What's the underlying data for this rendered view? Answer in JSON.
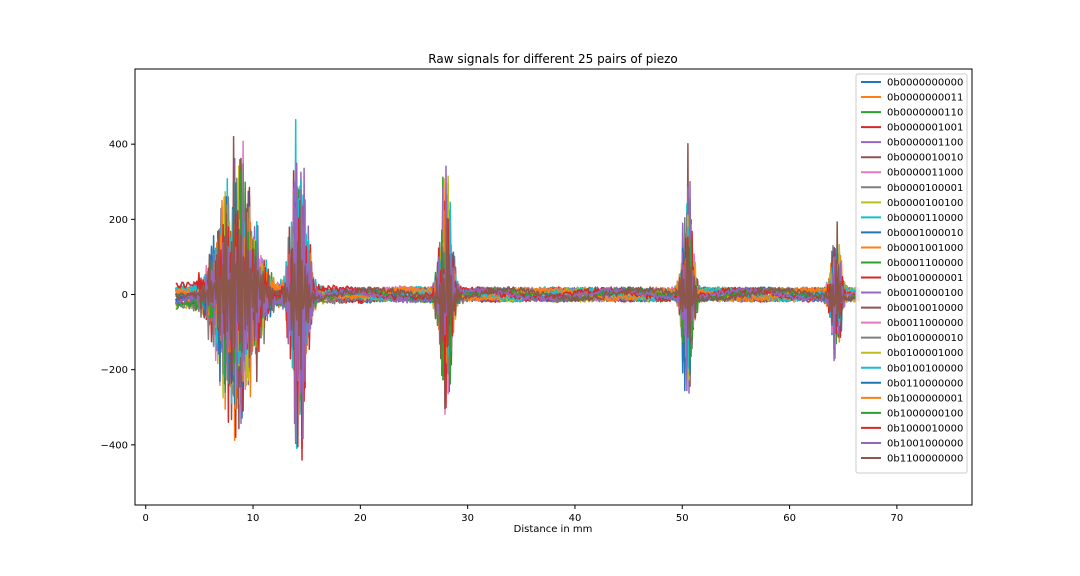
{
  "chart_data": {
    "type": "line",
    "title": "Raw signals for different 25 pairs of piezo",
    "xlabel": "Distance in mm",
    "ylabel": "",
    "xlim": [
      -1,
      77
    ],
    "ylim": [
      -560,
      600
    ],
    "xticks": [
      0,
      10,
      20,
      30,
      40,
      50,
      60,
      70
    ],
    "yticks": [
      -400,
      -200,
      0,
      200,
      400
    ],
    "grid": false,
    "legend_position": "top-right",
    "x_range": [
      2.8,
      66.5
    ],
    "bursts": [
      {
        "center": 8.5,
        "width": 2.2,
        "amplitude": 480
      },
      {
        "center": 14.3,
        "width": 0.9,
        "amplitude": 540
      },
      {
        "center": 28.0,
        "width": 0.7,
        "amplitude": 420
      },
      {
        "center": 50.5,
        "width": 0.6,
        "amplitude": 420
      },
      {
        "center": 64.3,
        "width": 0.6,
        "amplitude": 220
      }
    ],
    "series": [
      {
        "name": "0b0000000000",
        "color": "#1f77b4",
        "peak": 240
      },
      {
        "name": "0b0000000011",
        "color": "#ff7f0e",
        "peak": 425
      },
      {
        "name": "0b0000000110",
        "color": "#2ca02c",
        "peak": 260
      },
      {
        "name": "0b0000001001",
        "color": "#d62728",
        "peak": 540
      },
      {
        "name": "0b0000001100",
        "color": "#9467bd",
        "peak": 490
      },
      {
        "name": "0b0000010010",
        "color": "#8c564b",
        "peak": 300
      },
      {
        "name": "0b0000011000",
        "color": "#e377c2",
        "peak": 200
      },
      {
        "name": "0b0000100001",
        "color": "#7f7f7f",
        "peak": 180
      },
      {
        "name": "0b0000100100",
        "color": "#bcbd22",
        "peak": 200
      },
      {
        "name": "0b0000110000",
        "color": "#17becf",
        "peak": 540
      },
      {
        "name": "0b0001000010",
        "color": "#1f77b4",
        "peak": 220
      },
      {
        "name": "0b0001001000",
        "color": "#ff7f0e",
        "peak": 430
      },
      {
        "name": "0b0001100000",
        "color": "#2ca02c",
        "peak": 300
      },
      {
        "name": "0b0010000001",
        "color": "#d62728",
        "peak": 540
      },
      {
        "name": "0b0010000100",
        "color": "#9467bd",
        "peak": 300
      },
      {
        "name": "0b0010010000",
        "color": "#8c564b",
        "peak": 250
      },
      {
        "name": "0b0011000000",
        "color": "#e377c2",
        "peak": 200
      },
      {
        "name": "0b0100000010",
        "color": "#7f7f7f",
        "peak": 180
      },
      {
        "name": "0b0100001000",
        "color": "#bcbd22",
        "peak": 160
      },
      {
        "name": "0b0100100000",
        "color": "#17becf",
        "peak": 470
      },
      {
        "name": "0b0110000000",
        "color": "#1f77b4",
        "peak": 200
      },
      {
        "name": "0b1000000001",
        "color": "#ff7f0e",
        "peak": 400
      },
      {
        "name": "0b1000000100",
        "color": "#2ca02c",
        "peak": 280
      },
      {
        "name": "0b1000010000",
        "color": "#d62728",
        "peak": 540
      },
      {
        "name": "0b1001000000",
        "color": "#9467bd",
        "peak": 480
      },
      {
        "name": "0b1100000000",
        "color": "#8c564b",
        "peak": 260
      }
    ]
  }
}
